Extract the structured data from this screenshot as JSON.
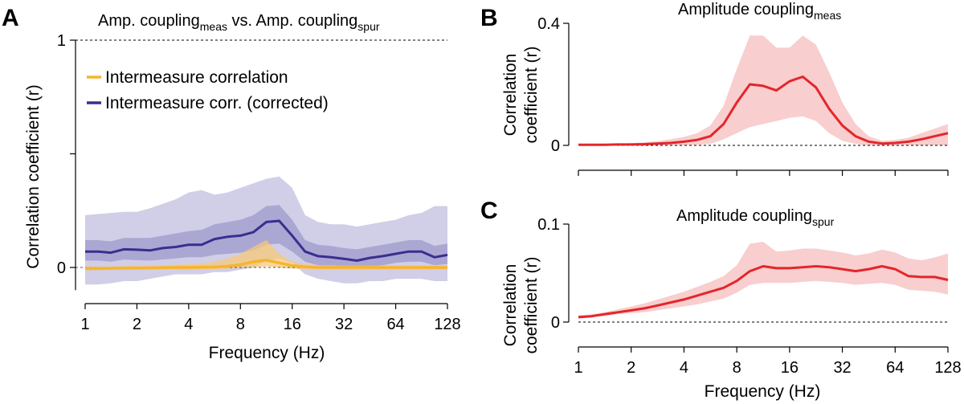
{
  "chart_data": [
    {
      "id": "A",
      "type": "line",
      "panel_label": "A",
      "title": "Amp. coupling",
      "title_sub": "meas",
      "title_mid": " vs. Amp. coupling",
      "title_sub2": "spur",
      "xlabel": "Frequency (Hz)",
      "ylabel": "Correlation coefficient (r)",
      "x_scale": "log2",
      "xlim": [
        1,
        128
      ],
      "ylim": [
        -0.1,
        1
      ],
      "x_ticks": [
        1,
        2,
        4,
        8,
        16,
        32,
        64,
        128
      ],
      "x_tick_labels": [
        "1",
        "2",
        "4",
        "8",
        "16",
        "32",
        "64",
        "128"
      ],
      "y_ticks": [
        0,
        0.5,
        1
      ],
      "y_tick_labels": [
        "0",
        "",
        "1"
      ],
      "reference_lines": [
        0,
        1
      ],
      "legend_position": "top-left",
      "series": [
        {
          "name": "Intermeasure correlation",
          "color": "#f5b52e",
          "x": [
            1,
            1.19,
            1.41,
            1.68,
            2,
            2.38,
            2.83,
            3.36,
            4,
            4.76,
            5.66,
            6.73,
            8,
            9.51,
            11.31,
            13.45,
            16,
            19.03,
            22.63,
            26.91,
            32,
            38.05,
            45.25,
            53.82,
            64,
            76.11,
            90.51,
            107.63,
            128
          ],
          "values": [
            -0.005,
            -0.005,
            -0.004,
            -0.003,
            -0.002,
            -0.002,
            -0.001,
            0.0,
            0.0,
            0.001,
            0.002,
            0.005,
            0.012,
            0.025,
            0.032,
            0.02,
            0.008,
            0.003,
            0.0,
            0.0,
            0.0,
            0.0,
            0.0,
            0.0,
            0.0,
            0.0,
            0.0,
            0.0,
            0.0
          ],
          "band_lower": [
            -0.012,
            -0.012,
            -0.011,
            -0.01,
            -0.01,
            -0.009,
            -0.009,
            -0.008,
            -0.008,
            -0.008,
            -0.007,
            -0.005,
            -0.002,
            0.0,
            0.005,
            0.0,
            -0.005,
            -0.008,
            -0.009,
            -0.01,
            -0.01,
            -0.01,
            -0.01,
            -0.01,
            -0.01,
            -0.01,
            -0.01,
            -0.01,
            -0.01
          ],
          "band_upper": [
            0.005,
            0.005,
            0.005,
            0.006,
            0.007,
            0.008,
            0.01,
            0.012,
            0.014,
            0.018,
            0.025,
            0.04,
            0.06,
            0.09,
            0.12,
            0.06,
            0.025,
            0.015,
            0.01,
            0.01,
            0.008,
            0.008,
            0.008,
            0.008,
            0.008,
            0.008,
            0.008,
            0.008,
            0.008
          ]
        },
        {
          "name": "Intermeasure corr. (corrected)",
          "color": "#3b2d8f",
          "x": [
            1,
            1.19,
            1.41,
            1.68,
            2,
            2.38,
            2.83,
            3.36,
            4,
            4.76,
            5.66,
            6.73,
            8,
            9.51,
            11.31,
            13.45,
            16,
            19.03,
            22.63,
            26.91,
            32,
            38.05,
            45.25,
            53.82,
            64,
            76.11,
            90.51,
            107.63,
            128
          ],
          "values": [
            0.07,
            0.07,
            0.065,
            0.08,
            0.078,
            0.075,
            0.085,
            0.09,
            0.1,
            0.1,
            0.125,
            0.135,
            0.14,
            0.155,
            0.2,
            0.205,
            0.14,
            0.07,
            0.05,
            0.045,
            0.038,
            0.03,
            0.042,
            0.05,
            0.06,
            0.07,
            0.07,
            0.045,
            0.055
          ],
          "band_inner_lower": [
            0.03,
            0.03,
            0.025,
            0.035,
            0.032,
            0.03,
            0.035,
            0.04,
            0.045,
            0.045,
            0.055,
            0.06,
            0.065,
            0.075,
            0.1,
            0.105,
            0.07,
            0.025,
            0.01,
            0.005,
            0.0,
            -0.005,
            0.005,
            0.01,
            0.02,
            0.025,
            0.025,
            0.01,
            0.015
          ],
          "band_inner_upper": [
            0.12,
            0.12,
            0.115,
            0.13,
            0.13,
            0.13,
            0.14,
            0.15,
            0.16,
            0.165,
            0.19,
            0.2,
            0.21,
            0.23,
            0.27,
            0.275,
            0.21,
            0.12,
            0.1,
            0.095,
            0.085,
            0.08,
            0.09,
            0.1,
            0.11,
            0.12,
            0.12,
            0.095,
            0.105
          ],
          "band_outer_lower": [
            -0.075,
            -0.075,
            -0.07,
            -0.06,
            -0.06,
            -0.05,
            -0.04,
            -0.03,
            -0.03,
            -0.03,
            -0.02,
            -0.02,
            -0.01,
            0.0,
            0.03,
            0.04,
            0.02,
            -0.03,
            -0.05,
            -0.06,
            -0.07,
            -0.07,
            -0.06,
            -0.06,
            -0.05,
            -0.05,
            -0.05,
            -0.06,
            -0.06
          ],
          "band_outer_upper": [
            0.23,
            0.235,
            0.24,
            0.245,
            0.245,
            0.26,
            0.28,
            0.3,
            0.33,
            0.34,
            0.32,
            0.33,
            0.35,
            0.37,
            0.39,
            0.4,
            0.35,
            0.23,
            0.2,
            0.19,
            0.19,
            0.18,
            0.19,
            0.2,
            0.21,
            0.23,
            0.24,
            0.27,
            0.27
          ]
        }
      ]
    },
    {
      "id": "B",
      "type": "line",
      "panel_label": "B",
      "title": "Amplitude coupling",
      "title_sub": "meas",
      "ylabel_line1": "Correlation",
      "ylabel_line2": "coefficient (r)",
      "x_scale": "log2",
      "xlim": [
        1,
        128
      ],
      "ylim": [
        0,
        0.4
      ],
      "x_ticks": [
        1,
        2,
        4,
        8,
        16,
        32,
        64,
        128
      ],
      "y_ticks": [
        0,
        0.4
      ],
      "y_tick_labels": [
        "0",
        "0.4"
      ],
      "reference_lines": [
        0
      ],
      "series": [
        {
          "name": "Amplitude coupling meas",
          "color": "#e3262b",
          "band_color": "#f7c9c9",
          "x": [
            1,
            1.19,
            1.41,
            1.68,
            2,
            2.38,
            2.83,
            3.36,
            4,
            4.76,
            5.66,
            6.73,
            8,
            9.51,
            11.31,
            13.45,
            16,
            19.03,
            22.63,
            26.91,
            32,
            38.05,
            45.25,
            53.82,
            64,
            76.11,
            90.51,
            107.63,
            128
          ],
          "values": [
            0.002,
            0.002,
            0.002,
            0.003,
            0.003,
            0.004,
            0.006,
            0.008,
            0.012,
            0.018,
            0.03,
            0.07,
            0.14,
            0.2,
            0.195,
            0.18,
            0.21,
            0.225,
            0.19,
            0.12,
            0.065,
            0.03,
            0.012,
            0.006,
            0.008,
            0.012,
            0.02,
            0.03,
            0.04
          ],
          "band_lower": [
            0.0,
            0.0,
            0.0,
            0.0,
            0.0,
            0.0,
            0.0,
            0.0,
            0.0,
            0.002,
            0.005,
            0.02,
            0.04,
            0.06,
            0.07,
            0.08,
            0.09,
            0.095,
            0.08,
            0.04,
            0.015,
            0.005,
            0.0,
            0.0,
            0.0,
            0.0,
            0.0,
            0.0,
            0.0
          ],
          "band_upper": [
            0.004,
            0.004,
            0.005,
            0.006,
            0.007,
            0.01,
            0.014,
            0.02,
            0.028,
            0.04,
            0.065,
            0.13,
            0.25,
            0.36,
            0.36,
            0.32,
            0.32,
            0.36,
            0.33,
            0.24,
            0.14,
            0.07,
            0.03,
            0.015,
            0.018,
            0.025,
            0.04,
            0.055,
            0.07
          ]
        }
      ]
    },
    {
      "id": "C",
      "type": "line",
      "panel_label": "C",
      "title": "Amplitude coupling",
      "title_sub": "spur",
      "ylabel_line1": "Correlation",
      "ylabel_line2": "coefficient (r)",
      "xlabel": "Frequency (Hz)",
      "x_scale": "log2",
      "xlim": [
        1,
        128
      ],
      "ylim": [
        0,
        0.1
      ],
      "x_ticks": [
        1,
        2,
        4,
        8,
        16,
        32,
        64,
        128
      ],
      "x_tick_labels": [
        "1",
        "2",
        "4",
        "8",
        "16",
        "32",
        "64",
        "128"
      ],
      "y_ticks": [
        0,
        0.1
      ],
      "y_tick_labels": [
        "0",
        "0.1"
      ],
      "reference_lines": [
        0
      ],
      "series": [
        {
          "name": "Amplitude coupling spur",
          "color": "#e3262b",
          "band_color": "#f7c9c9",
          "x": [
            1,
            1.19,
            1.41,
            1.68,
            2,
            2.38,
            2.83,
            3.36,
            4,
            4.76,
            5.66,
            6.73,
            8,
            9.51,
            11.31,
            13.45,
            16,
            19.03,
            22.63,
            26.91,
            32,
            38.05,
            45.25,
            53.82,
            64,
            76.11,
            90.51,
            107.63,
            128
          ],
          "values": [
            0.005,
            0.006,
            0.008,
            0.01,
            0.012,
            0.014,
            0.017,
            0.02,
            0.023,
            0.027,
            0.031,
            0.035,
            0.042,
            0.052,
            0.057,
            0.055,
            0.055,
            0.056,
            0.057,
            0.056,
            0.054,
            0.052,
            0.054,
            0.057,
            0.054,
            0.047,
            0.046,
            0.046,
            0.043
          ],
          "band_lower": [
            0.004,
            0.005,
            0.006,
            0.008,
            0.009,
            0.01,
            0.012,
            0.014,
            0.016,
            0.018,
            0.021,
            0.024,
            0.03,
            0.038,
            0.04,
            0.04,
            0.04,
            0.041,
            0.042,
            0.041,
            0.04,
            0.038,
            0.039,
            0.04,
            0.038,
            0.033,
            0.032,
            0.031,
            0.028
          ],
          "band_upper": [
            0.007,
            0.008,
            0.01,
            0.013,
            0.016,
            0.019,
            0.023,
            0.027,
            0.031,
            0.036,
            0.041,
            0.047,
            0.058,
            0.08,
            0.082,
            0.072,
            0.073,
            0.075,
            0.075,
            0.073,
            0.071,
            0.068,
            0.07,
            0.074,
            0.071,
            0.065,
            0.063,
            0.066,
            0.07
          ]
        }
      ]
    }
  ]
}
